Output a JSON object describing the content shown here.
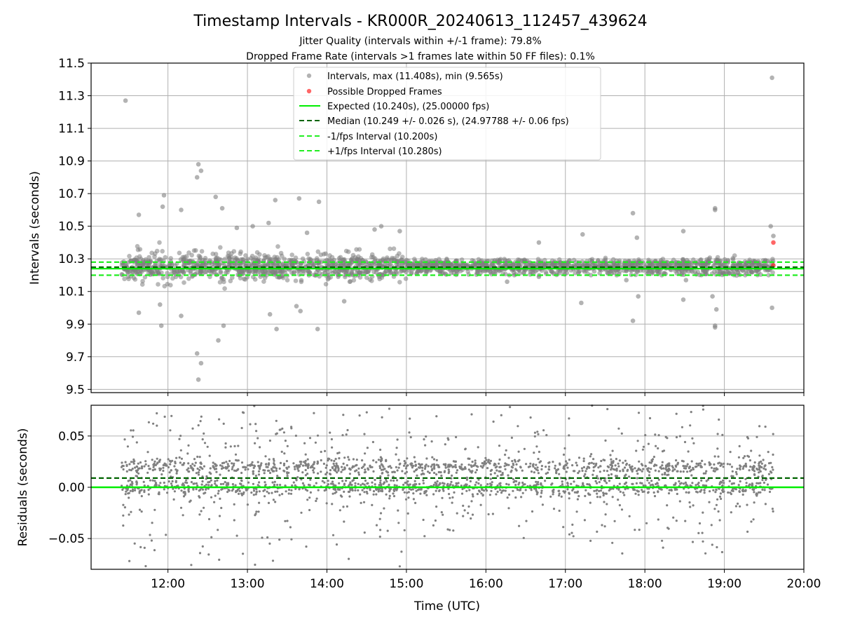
{
  "figure": {
    "title": "Timestamp Intervals - KR000R_20240613_112457_439624",
    "subtitle1": "Jitter Quality (intervals within +/-1 frame): 79.8%",
    "subtitle2": "Dropped Frame Rate (intervals >1 frames late within 50 FF files): 0.1%"
  },
  "colors": {
    "intervals": "#808080",
    "dropped": "#ff0000",
    "expected": "#00ee00",
    "median": "#006400",
    "fps_band": "#22ee22",
    "grid": "#b0b0b0"
  },
  "chart_data": [
    {
      "type": "scatter",
      "panel": "top",
      "ylabel": "Intervals (seconds)",
      "xlim": [
        "11:02",
        "20:00"
      ],
      "ylim": [
        9.48,
        11.5
      ],
      "yticks": [
        "9.5",
        "9.7",
        "9.9",
        "10.1",
        "10.3",
        "10.5",
        "10.7",
        "10.9",
        "11.1",
        "11.3",
        "11.5"
      ],
      "ytick_values": [
        9.5,
        9.7,
        9.9,
        10.1,
        10.3,
        10.5,
        10.7,
        10.9,
        11.1,
        11.3,
        11.5
      ],
      "grid": true,
      "legend_position": "top-center",
      "legend": [
        "Intervals, max (11.408s), min (9.565s)",
        "Possible Dropped Frames",
        "Expected (10.240s), (25.00000 fps)",
        "Median (10.249 +/- 0.026 s), (24.97788 +/- 0.06 fps)",
        "-1/fps Interval (10.200s)",
        "+1/fps Interval (10.280s)"
      ],
      "reference_lines": {
        "expected": 10.24,
        "median": 10.249,
        "minus_one_fps": 10.2,
        "plus_one_fps": 10.28
      },
      "series": [
        {
          "name": "Intervals, max (11.408s), min (9.565s)",
          "time_range": [
            "11:25",
            "19:37"
          ],
          "core_band": [
            10.2,
            10.3
          ],
          "outliers": [
            {
              "t": "11:28",
              "v": 11.27
            },
            {
              "t": "11:38",
              "v": 10.57
            },
            {
              "t": "11:38",
              "v": 9.97
            },
            {
              "t": "11:57",
              "v": 10.69
            },
            {
              "t": "11:56",
              "v": 10.62
            },
            {
              "t": "11:55",
              "v": 9.89
            },
            {
              "t": "11:54",
              "v": 10.02
            },
            {
              "t": "12:10",
              "v": 10.6
            },
            {
              "t": "12:10",
              "v": 9.95
            },
            {
              "t": "12:22",
              "v": 10.8
            },
            {
              "t": "12:23",
              "v": 10.88
            },
            {
              "t": "12:25",
              "v": 10.84
            },
            {
              "t": "12:22",
              "v": 9.72
            },
            {
              "t": "12:25",
              "v": 9.66
            },
            {
              "t": "12:23",
              "v": 9.56
            },
            {
              "t": "12:36",
              "v": 10.68
            },
            {
              "t": "12:38",
              "v": 9.8
            },
            {
              "t": "12:41",
              "v": 10.61
            },
            {
              "t": "12:42",
              "v": 9.89
            },
            {
              "t": "12:52",
              "v": 10.49
            },
            {
              "t": "13:04",
              "v": 10.5
            },
            {
              "t": "13:16",
              "v": 10.52
            },
            {
              "t": "13:21",
              "v": 10.66
            },
            {
              "t": "13:17",
              "v": 9.96
            },
            {
              "t": "13:22",
              "v": 9.87
            },
            {
              "t": "13:39",
              "v": 10.67
            },
            {
              "t": "13:37",
              "v": 10.01
            },
            {
              "t": "13:40",
              "v": 9.98
            },
            {
              "t": "13:45",
              "v": 10.46
            },
            {
              "t": "13:54",
              "v": 10.65
            },
            {
              "t": "13:53",
              "v": 9.87
            },
            {
              "t": "14:13",
              "v": 10.04
            },
            {
              "t": "14:36",
              "v": 10.48
            },
            {
              "t": "14:41",
              "v": 10.5
            },
            {
              "t": "14:55",
              "v": 10.47
            },
            {
              "t": "16:16",
              "v": 10.16
            },
            {
              "t": "16:40",
              "v": 10.19
            },
            {
              "t": "16:40",
              "v": 10.4
            },
            {
              "t": "17:13",
              "v": 10.45
            },
            {
              "t": "17:12",
              "v": 10.03
            },
            {
              "t": "17:46",
              "v": 10.17
            },
            {
              "t": "17:51",
              "v": 9.92
            },
            {
              "t": "17:51",
              "v": 10.58
            },
            {
              "t": "17:55",
              "v": 10.07
            },
            {
              "t": "17:54",
              "v": 10.43
            },
            {
              "t": "18:29",
              "v": 10.47
            },
            {
              "t": "18:29",
              "v": 10.05
            },
            {
              "t": "18:31",
              "v": 10.17
            },
            {
              "t": "18:51",
              "v": 10.07
            },
            {
              "t": "18:53",
              "v": 10.6
            },
            {
              "t": "18:53",
              "v": 10.61
            },
            {
              "t": "18:53",
              "v": 9.89
            },
            {
              "t": "18:53",
              "v": 9.88
            },
            {
              "t": "18:54",
              "v": 9.99
            },
            {
              "t": "19:35",
              "v": 10.5
            },
            {
              "t": "19:36",
              "v": 11.41
            },
            {
              "t": "19:36",
              "v": 10.0
            },
            {
              "t": "19:37",
              "v": 10.44
            }
          ]
        },
        {
          "name": "Possible Dropped Frames",
          "points": [
            {
              "t": "19:37",
              "v": 10.4
            },
            {
              "t": "19:37",
              "v": 10.26
            }
          ]
        }
      ]
    },
    {
      "type": "scatter",
      "panel": "bottom",
      "xlabel": "Time (UTC)",
      "ylabel": "Residuals (seconds)",
      "xlim": [
        "11:02",
        "20:00"
      ],
      "ylim": [
        -0.08,
        0.08
      ],
      "yticks": [
        "−0.05",
        "0.00",
        "0.05"
      ],
      "ytick_values": [
        -0.05,
        0.0,
        0.05
      ],
      "xticks": [
        "12:00",
        "13:00",
        "14:00",
        "15:00",
        "16:00",
        "17:00",
        "18:00",
        "19:00",
        "20:00"
      ],
      "grid": true,
      "reference_lines": {
        "expected": 0.0,
        "median": 0.009
      },
      "series": [
        {
          "name": "Residuals",
          "time_range": [
            "11:25",
            "19:37"
          ],
          "main_band": [
            -0.01,
            0.03
          ],
          "spread": [
            -0.08,
            0.08
          ]
        }
      ]
    }
  ]
}
